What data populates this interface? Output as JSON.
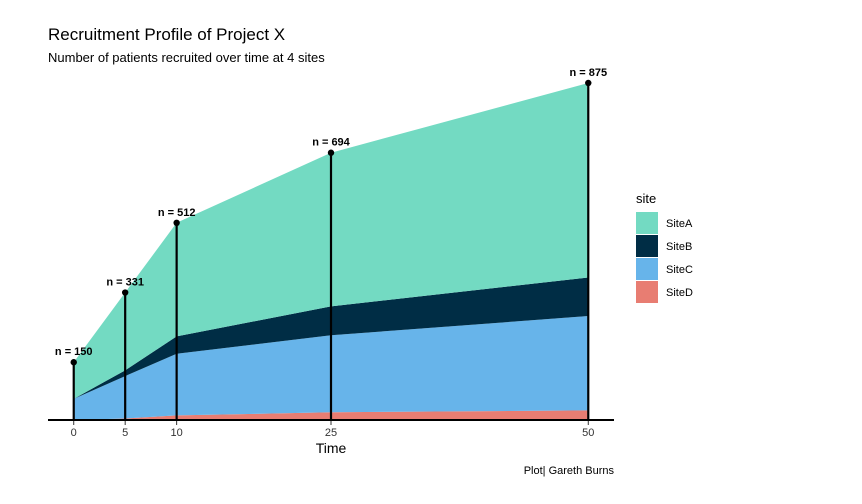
{
  "chart_data": {
    "type": "area",
    "title": "Recruitment Profile of Project X",
    "subtitle": "Number of patients recruited over time at 4 sites",
    "xlabel": "Time",
    "ylabel": "",
    "caption": "Plot| Gareth Burns",
    "x": [
      0,
      5,
      10,
      25,
      50
    ],
    "xlim": [
      -2.5,
      52.5
    ],
    "ylim": [
      0,
      875
    ],
    "stacked": true,
    "grid": false,
    "legend": {
      "title": "site",
      "position": "right"
    },
    "series": [
      {
        "name": "SiteD",
        "color": "#E87D72",
        "values": [
          0,
          4,
          12,
          20,
          25
        ]
      },
      {
        "name": "SiteC",
        "color": "#67B4EA",
        "values": [
          55,
          110,
          160,
          200,
          245
        ]
      },
      {
        "name": "SiteB",
        "color": "#002D45",
        "values": [
          0,
          15,
          45,
          75,
          100
        ]
      },
      {
        "name": "SiteA",
        "color": "#73DAC2",
        "values": [
          95,
          202,
          295,
          399,
          505
        ]
      }
    ],
    "totals": [
      150,
      331,
      512,
      694,
      875
    ],
    "total_labels": [
      "n = 150",
      "n = 331",
      "n = 512",
      "n = 694",
      "n = 875"
    ],
    "x_tick_labels": [
      "0",
      "5",
      "10",
      "25",
      "50"
    ]
  }
}
